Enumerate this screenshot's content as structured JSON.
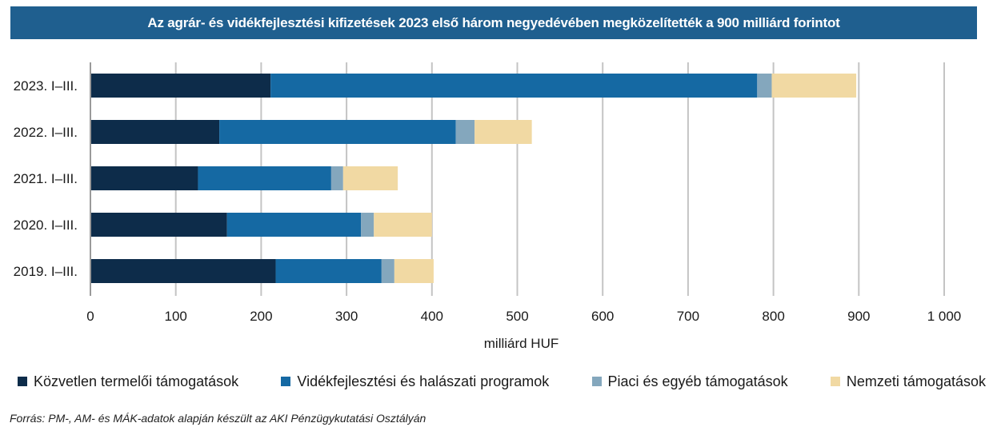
{
  "title": "Az agrár- és vidékfejlesztési kifizetések 2023 első három negyedévében megközelítették a 900 milliárd forintot",
  "chart_data": {
    "type": "bar",
    "orientation": "horizontal",
    "stacked": true,
    "categories": [
      "2023. I–III.",
      "2022. I–III.",
      "2021. I–III.",
      "2020. I–III.",
      "2019. I–III."
    ],
    "series": [
      {
        "name": "Közvetlen termelői támogatások",
        "color": "#0d2c4a",
        "values": [
          211,
          151,
          126,
          160,
          217
        ]
      },
      {
        "name": "Vidékfejlesztési és halászati programok",
        "color": "#1569a3",
        "values": [
          570,
          277,
          156,
          157,
          124
        ]
      },
      {
        "name": "Piaci és egyéb támogatások",
        "color": "#84a7bd",
        "values": [
          17,
          22,
          14,
          15,
          15
        ]
      },
      {
        "name": "Nemzeti támogatások",
        "color": "#f1d9a3",
        "values": [
          99,
          67,
          64,
          68,
          46
        ]
      }
    ],
    "xlabel": "milliárd HUF",
    "xlim": [
      0,
      1000
    ],
    "xticks": [
      0,
      100,
      200,
      300,
      400,
      500,
      600,
      700,
      800,
      900,
      1000
    ],
    "xtick_labels": [
      "0",
      "100",
      "200",
      "300",
      "400",
      "500",
      "600",
      "700",
      "800",
      "900",
      "1 000"
    ],
    "grid": "vertical",
    "legend_position": "bottom"
  },
  "source": "Forrás: PM-, AM- és MÁK-adatok alapján készült az AKI Pénzügykutatási Osztályán"
}
